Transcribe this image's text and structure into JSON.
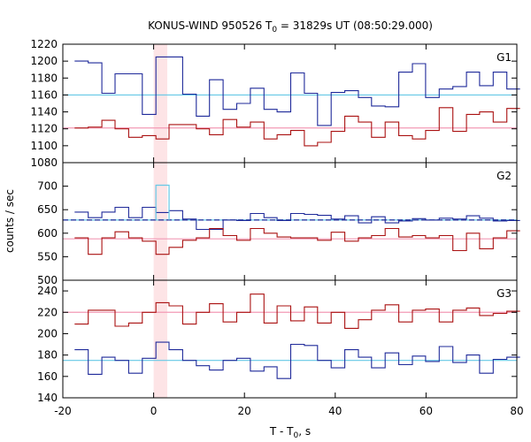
{
  "chart_data": {
    "type": "line",
    "title": {
      "prefix": "KONUS-WIND 950526 T",
      "sub": "0",
      "suffix": " = 31829s UT (08:50:29.000)"
    },
    "xlabel": {
      "prefix": "T - T",
      "sub": "0",
      "suffix": ", s"
    },
    "ylabel": "counts / sec",
    "xlim": [
      -20,
      80
    ],
    "xticks": [
      -20,
      0,
      20,
      40,
      60,
      80
    ],
    "highlight_band": [
      0,
      3
    ],
    "colors": {
      "band": "#fde4e6",
      "red_series": "#aa1111",
      "blue_series": "#1f2a9a",
      "pink_bg": "#f29ab5",
      "cyan_bg": "#65c8e6",
      "blue_fit": "#1f2a9a",
      "peak_cyan": "#65c8e6"
    },
    "panels": [
      {
        "name": "G1",
        "ylim": [
          1080,
          1220
        ],
        "yticks": [
          1080,
          1100,
          1120,
          1140,
          1160,
          1180,
          1200,
          1220
        ],
        "bg_levels": [
          {
            "name": "pink",
            "value": 1121
          },
          {
            "name": "cyan",
            "value": 1160
          }
        ],
        "series": [
          {
            "color_key": "blue_series",
            "edges": [
              -17.4,
              -14.4,
              -11.4,
              -8.5,
              -5.5,
              -2.5,
              0.5,
              3.4,
              6.4,
              9.4,
              12.3,
              15.3,
              18.3,
              21.3,
              24.3,
              27.2,
              30.2,
              33.2,
              36.1,
              39.1,
              42.1,
              45.1,
              48.0,
              51.0,
              54.0,
              57.0,
              59.9,
              62.9,
              65.9,
              68.9,
              71.8,
              74.8,
              77.8,
              80.7
            ],
            "values": [
              1200,
              1198,
              1162,
              1185,
              1185,
              1137,
              1205,
              1205,
              1161,
              1135,
              1178,
              1143,
              1150,
              1168,
              1143,
              1140,
              1186,
              1162,
              1124,
              1163,
              1165,
              1157,
              1147,
              1146,
              1187,
              1197,
              1157,
              1167,
              1170,
              1187,
              1171,
              1187,
              1167
            ]
          },
          {
            "color_key": "red_series",
            "edges": [
              -17.4,
              -14.4,
              -11.4,
              -8.5,
              -5.5,
              -2.5,
              0.5,
              3.4,
              6.4,
              9.4,
              12.3,
              15.3,
              18.3,
              21.3,
              24.3,
              27.2,
              30.2,
              33.2,
              36.1,
              39.1,
              42.1,
              45.1,
              48.0,
              51.0,
              54.0,
              57.0,
              59.9,
              62.9,
              65.9,
              68.9,
              71.8,
              74.8,
              77.8,
              80.7
            ],
            "values": [
              1121,
              1122,
              1130,
              1120,
              1110,
              1112,
              1108,
              1125,
              1125,
              1120,
              1113,
              1131,
              1122,
              1128,
              1108,
              1113,
              1118,
              1100,
              1104,
              1117,
              1135,
              1128,
              1110,
              1128,
              1112,
              1108,
              1118,
              1145,
              1117,
              1137,
              1140,
              1128,
              1144
            ]
          }
        ]
      },
      {
        "name": "G2",
        "ylim": [
          500,
          750
        ],
        "yticks": [
          500,
          550,
          600,
          650,
          700
        ],
        "bg_levels": [
          {
            "name": "pink",
            "value": 588
          },
          {
            "name": "cyan",
            "value": 628
          }
        ],
        "fit_line": {
          "value": 628,
          "dashed": true
        },
        "peak": {
          "x": [
            0.5,
            3.4
          ],
          "value": 702
        },
        "series": [
          {
            "color_key": "blue_series",
            "edges": [
              -17.4,
              -14.4,
              -11.4,
              -8.5,
              -5.5,
              -2.5,
              0.5,
              3.4,
              6.4,
              9.4,
              12.3,
              15.3,
              18.3,
              21.3,
              24.3,
              27.2,
              30.2,
              33.2,
              36.1,
              39.1,
              42.1,
              45.1,
              48.0,
              51.0,
              54.0,
              57.0,
              59.9,
              62.9,
              65.9,
              68.9,
              71.8,
              74.8,
              77.8,
              80.7
            ],
            "values": [
              645,
              633,
              645,
              655,
              633,
              655,
              644,
              648,
              630,
              608,
              608,
              628,
              627,
              642,
              633,
              627,
              642,
              640,
              638,
              630,
              637,
              622,
              635,
              622,
              626,
              631,
              628,
              632,
              630,
              637,
              632,
              626,
              627
            ]
          },
          {
            "color_key": "red_series",
            "edges": [
              -17.4,
              -14.4,
              -11.4,
              -8.5,
              -5.5,
              -2.5,
              0.5,
              3.4,
              6.4,
              9.4,
              12.3,
              15.3,
              18.3,
              21.3,
              24.3,
              27.2,
              30.2,
              33.2,
              36.1,
              39.1,
              42.1,
              45.1,
              48.0,
              51.0,
              54.0,
              57.0,
              59.9,
              62.9,
              65.9,
              68.9,
              71.8,
              74.8,
              77.8,
              80.7
            ],
            "values": [
              590,
              555,
              590,
              603,
              590,
              583,
              555,
              570,
              585,
              590,
              610,
              595,
              585,
              610,
              600,
              592,
              590,
              590,
              585,
              602,
              583,
              590,
              595,
              610,
              592,
              595,
              590,
              595,
              563,
              600,
              567,
              590,
              605
            ]
          }
        ]
      },
      {
        "name": "G3",
        "ylim": [
          140,
          250
        ],
        "yticks": [
          140,
          160,
          180,
          200,
          220,
          240
        ],
        "bg_levels": [
          {
            "name": "pink",
            "value": 220
          },
          {
            "name": "cyan",
            "value": 175
          }
        ],
        "series": [
          {
            "color_key": "red_series",
            "edges": [
              -17.4,
              -14.4,
              -11.4,
              -8.5,
              -5.5,
              -2.5,
              0.5,
              3.4,
              6.4,
              9.4,
              12.3,
              15.3,
              18.3,
              21.3,
              24.3,
              27.2,
              30.2,
              33.2,
              36.1,
              39.1,
              42.1,
              45.1,
              48.0,
              51.0,
              54.0,
              57.0,
              59.9,
              62.9,
              65.9,
              68.9,
              71.8,
              74.8,
              77.8,
              80.7
            ],
            "values": [
              209,
              222,
              222,
              207,
              210,
              220,
              229,
              226,
              209,
              220,
              228,
              211,
              220,
              237,
              210,
              226,
              212,
              225,
              210,
              220,
              205,
              213,
              222,
              227,
              211,
              222,
              223,
              211,
              222,
              224,
              217,
              219,
              221
            ]
          },
          {
            "color_key": "blue_series",
            "edges": [
              -17.4,
              -14.4,
              -11.4,
              -8.5,
              -5.5,
              -2.5,
              0.5,
              3.4,
              6.4,
              9.4,
              12.3,
              15.3,
              18.3,
              21.3,
              24.3,
              27.2,
              30.2,
              33.2,
              36.1,
              39.1,
              42.1,
              45.1,
              48.0,
              51.0,
              54.0,
              57.0,
              59.9,
              62.9,
              65.9,
              68.9,
              71.8,
              74.8,
              77.8,
              80.7
            ],
            "values": [
              185,
              162,
              178,
              175,
              163,
              177,
              192,
              185,
              175,
              170,
              166,
              175,
              177,
              165,
              169,
              158,
              190,
              189,
              175,
              168,
              185,
              178,
              168,
              182,
              171,
              179,
              174,
              188,
              173,
              180,
              163,
              176,
              178
            ]
          }
        ]
      }
    ]
  }
}
